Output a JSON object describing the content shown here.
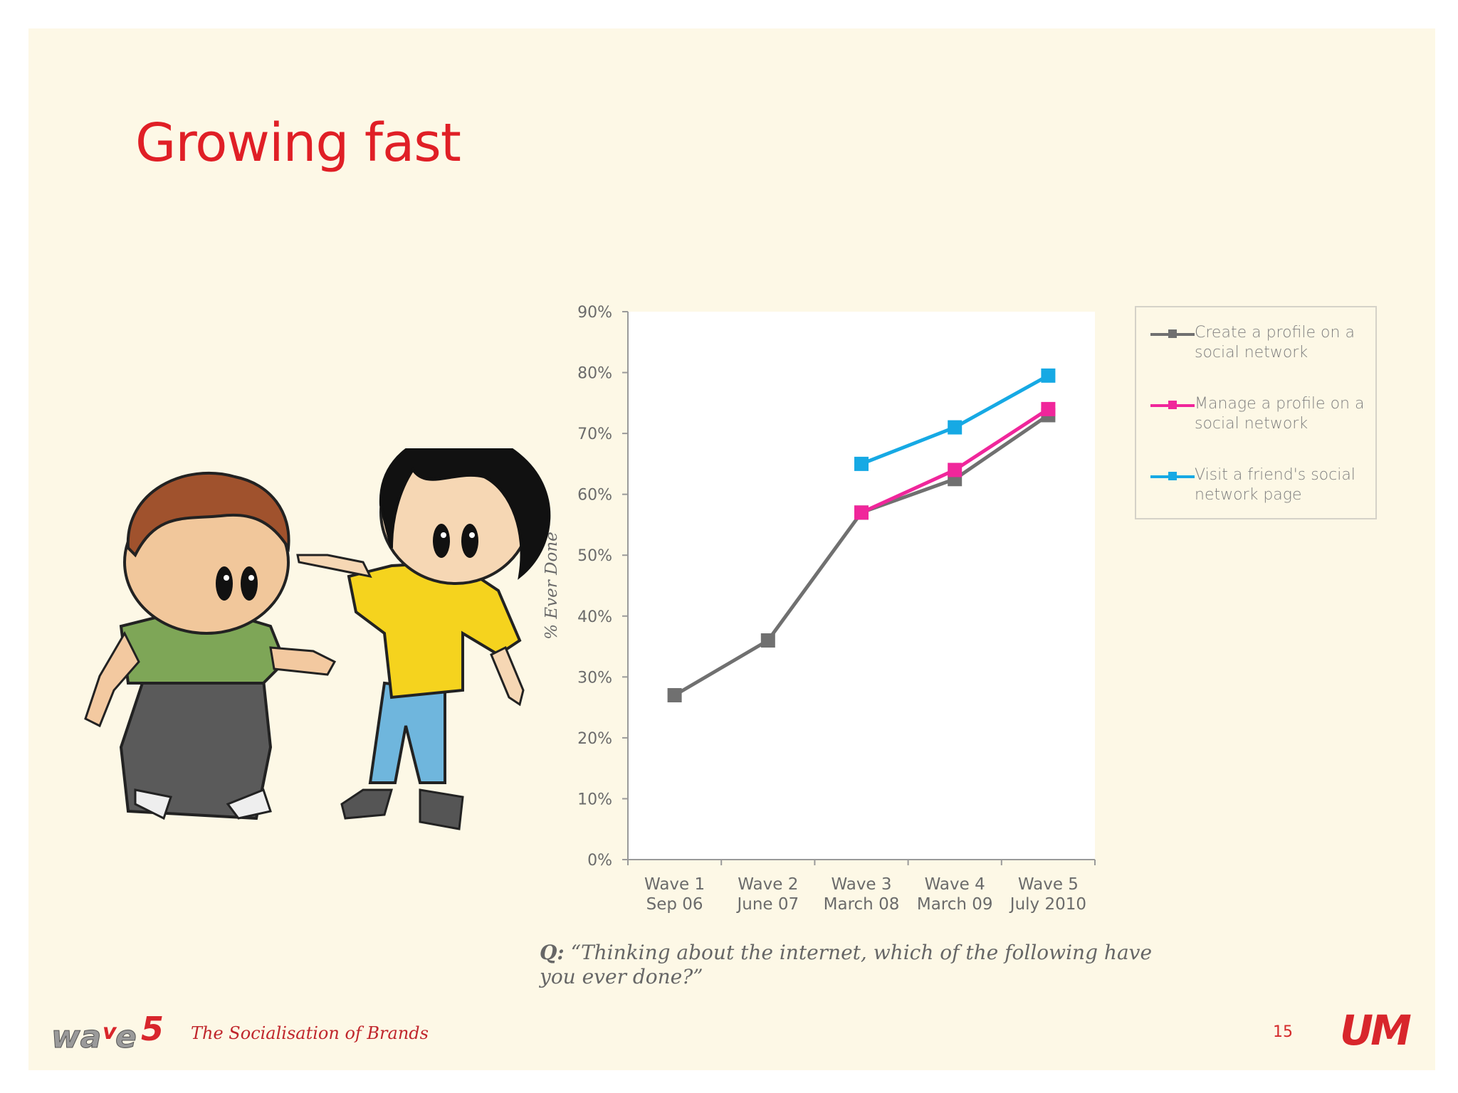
{
  "slide": {
    "title": "Growing fast",
    "question_prefix": "Q:",
    "question_text": "“Thinking about the internet, which of the following have you ever done?”",
    "footer_brand": "The Socialisation of Brands",
    "page_number": "15",
    "logo_left": "wave5",
    "logo_right": "UM",
    "colors": {
      "title": "#e01f26",
      "footer": "#c0262c",
      "background": "#fdf8e6"
    }
  },
  "chart_data": {
    "type": "line",
    "title": "",
    "ylabel": "% Ever Done",
    "xlabel": "",
    "ylim": [
      0,
      90
    ],
    "yticks": [
      "0%",
      "10%",
      "20%",
      "30%",
      "40%",
      "50%",
      "60%",
      "70%",
      "80%",
      "90%"
    ],
    "categories": [
      {
        "line1": "Wave 1",
        "line2": "Sep 06"
      },
      {
        "line1": "Wave 2",
        "line2": "June 07"
      },
      {
        "line1": "Wave 3",
        "line2": "March 08"
      },
      {
        "line1": "Wave 4",
        "line2": "March 09"
      },
      {
        "line1": "Wave 5",
        "line2": "July 2010"
      }
    ],
    "series": [
      {
        "name": "Create a profile on a social network",
        "color": "#707070",
        "values": [
          27,
          36,
          57,
          62.5,
          73
        ]
      },
      {
        "name": "Manage a profile on a social network",
        "color": "#f0269b",
        "values": [
          null,
          null,
          57,
          64,
          74
        ]
      },
      {
        "name": "Visit a friend's social network page",
        "color": "#16a9e4",
        "values": [
          null,
          null,
          65,
          71,
          79.5
        ]
      }
    ],
    "legend_position": "right",
    "grid": false
  }
}
